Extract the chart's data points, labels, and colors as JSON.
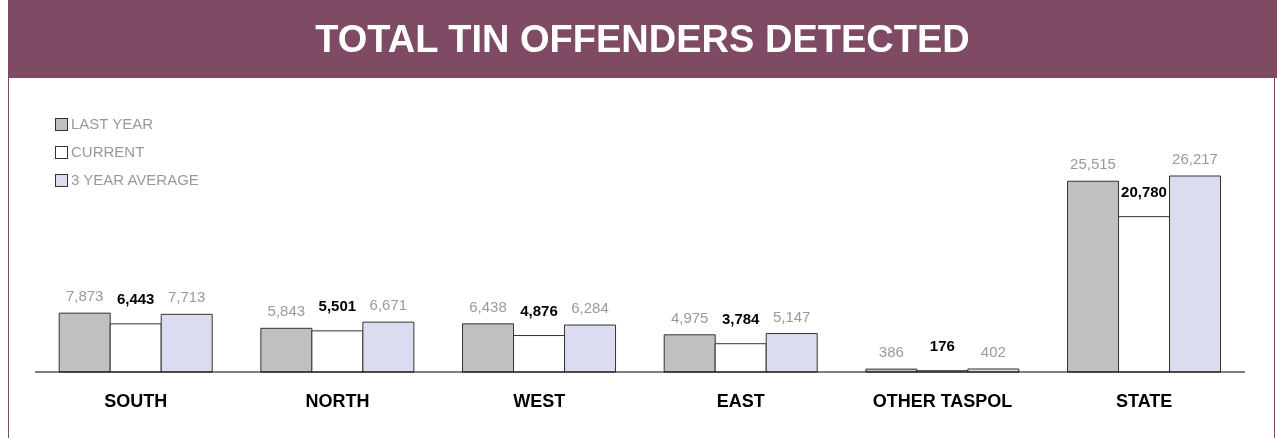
{
  "chart_data": {
    "type": "bar",
    "title": "TOTAL TIN OFFENDERS DETECTED",
    "categories": [
      "SOUTH",
      "NORTH",
      "WEST",
      "EAST",
      "OTHER TASPOL",
      "STATE"
    ],
    "series": [
      {
        "name": "LAST YEAR",
        "color": "#c0c0c0",
        "values": [
          7873,
          5843,
          6438,
          4975,
          386,
          25515
        ],
        "value_labels": [
          "7,873",
          "5,843",
          "6,438",
          "4,975",
          "386",
          "25,515"
        ]
      },
      {
        "name": "CURRENT",
        "color": "#ffffff",
        "values": [
          6443,
          5501,
          4876,
          3784,
          176,
          20780
        ],
        "value_labels": [
          "6,443",
          "5,501",
          "4,876",
          "3,784",
          "176",
          "20,780"
        ]
      },
      {
        "name": "3 YEAR AVERAGE",
        "color": "#dcdcf0",
        "values": [
          7713,
          6671,
          6284,
          5147,
          402,
          26217
        ],
        "value_labels": [
          "7,713",
          "6,671",
          "6,284",
          "5,147",
          "402",
          "26,217"
        ]
      }
    ],
    "legend": "top left",
    "tick_labels": "x"
  }
}
